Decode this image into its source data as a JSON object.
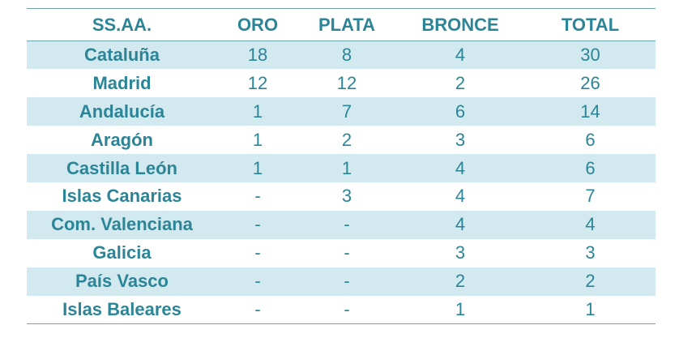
{
  "table": {
    "headers": {
      "region": "SS.AA.",
      "oro": "ORO",
      "plata": "PLATA",
      "bronce": "BRONCE",
      "total": "TOTAL"
    },
    "rows": [
      {
        "region": "Cataluña",
        "oro": "18",
        "plata": "8",
        "bronce": "4",
        "total": "30"
      },
      {
        "region": "Madrid",
        "oro": "12",
        "plata": "12",
        "bronce": "2",
        "total": "26"
      },
      {
        "region": "Andalucía",
        "oro": "1",
        "plata": "7",
        "bronce": "6",
        "total": "14"
      },
      {
        "region": "Aragón",
        "oro": "1",
        "plata": "2",
        "bronce": "3",
        "total": "6"
      },
      {
        "region": "Castilla León",
        "oro": "1",
        "plata": "1",
        "bronce": "4",
        "total": "6"
      },
      {
        "region": "Islas Canarias",
        "oro": "-",
        "plata": "3",
        "bronce": "4",
        "total": "7"
      },
      {
        "region": "Com. Valenciana",
        "oro": "-",
        "plata": "-",
        "bronce": "4",
        "total": "4"
      },
      {
        "region": "Galicia",
        "oro": "-",
        "plata": "-",
        "bronce": "3",
        "total": "3"
      },
      {
        "region": "País Vasco",
        "oro": "-",
        "plata": "-",
        "bronce": "2",
        "total": "2"
      },
      {
        "region": "Islas Baleares",
        "oro": "-",
        "plata": "-",
        "bronce": "1",
        "total": "1"
      }
    ]
  },
  "colors": {
    "text": "#2b8597",
    "band": "#d2e9ef",
    "rule": "#6fa4ad"
  }
}
